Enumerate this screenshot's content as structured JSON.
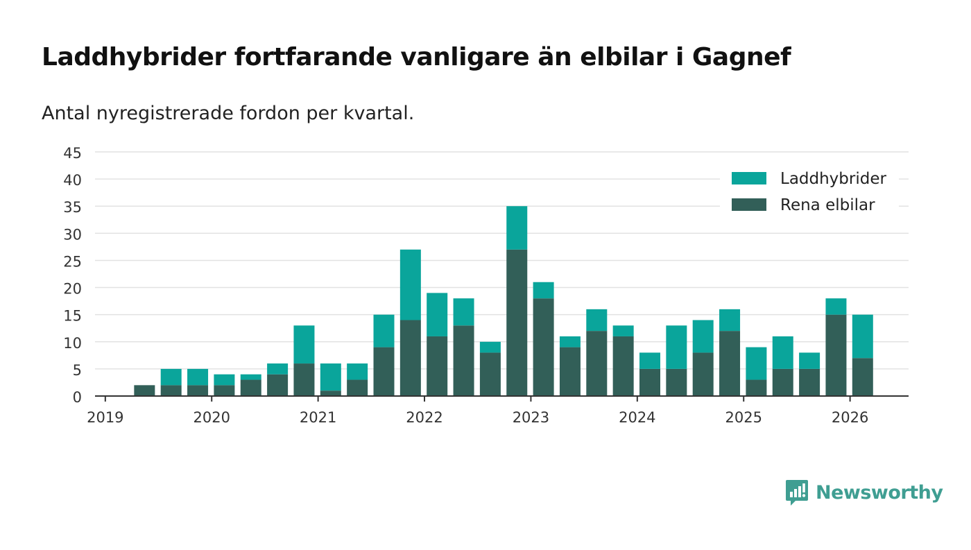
{
  "title": "Laddhybrider fortfarande vanligare än elbilar i Gagnef",
  "subtitle": "Antal nyregistrerade fordon per kvartal.",
  "brand": "Newsworthy",
  "colors": {
    "plugin_hybrids": "#0aa59b",
    "pure_electric": "#325f58",
    "grid": "#e2e2e2",
    "axis": "#333333",
    "brand": "#3f9e92"
  },
  "chart_data": {
    "type": "bar",
    "stacked": true,
    "title": "Laddhybrider fortfarande vanligare än elbilar i Gagnef",
    "subtitle": "Antal nyregistrerade fordon per kvartal.",
    "xlabel": "",
    "ylabel": "",
    "ylim": [
      0,
      45
    ],
    "yticks": [
      0,
      5,
      10,
      15,
      20,
      25,
      30,
      35,
      40,
      45
    ],
    "xticks": [
      "2019",
      "2020",
      "2021",
      "2022",
      "2023",
      "2024",
      "2025",
      "2026"
    ],
    "grid": true,
    "legend_position": "top-right",
    "categories": [
      "2019 Q1",
      "2019 Q2",
      "2019 Q3",
      "2019 Q4",
      "2020 Q1",
      "2020 Q2",
      "2020 Q3",
      "2020 Q4",
      "2021 Q1",
      "2021 Q2",
      "2021 Q3",
      "2021 Q4",
      "2022 Q1",
      "2022 Q2",
      "2022 Q3",
      "2022 Q4",
      "2023 Q1",
      "2023 Q2",
      "2023 Q3",
      "2023 Q4",
      "2024 Q1",
      "2024 Q2",
      "2024 Q3",
      "2024 Q4",
      "2025 Q1",
      "2025 Q2",
      "2025 Q3",
      "2025 Q4",
      "2026 Q1"
    ],
    "series": [
      {
        "name": "Rena elbilar",
        "values": [
          0,
          2,
          2,
          2,
          2,
          3,
          4,
          6,
          1,
          3,
          9,
          14,
          11,
          13,
          8,
          27,
          18,
          9,
          12,
          11,
          5,
          5,
          8,
          12,
          3,
          5,
          5,
          15,
          7
        ]
      },
      {
        "name": "Laddhybrider",
        "values": [
          0,
          0,
          3,
          3,
          2,
          1,
          2,
          7,
          5,
          3,
          6,
          13,
          8,
          5,
          2,
          8,
          3,
          2,
          4,
          2,
          3,
          8,
          6,
          4,
          6,
          6,
          3,
          3,
          8
        ]
      }
    ],
    "legend": [
      "Laddhybrider",
      "Rena elbilar"
    ]
  }
}
